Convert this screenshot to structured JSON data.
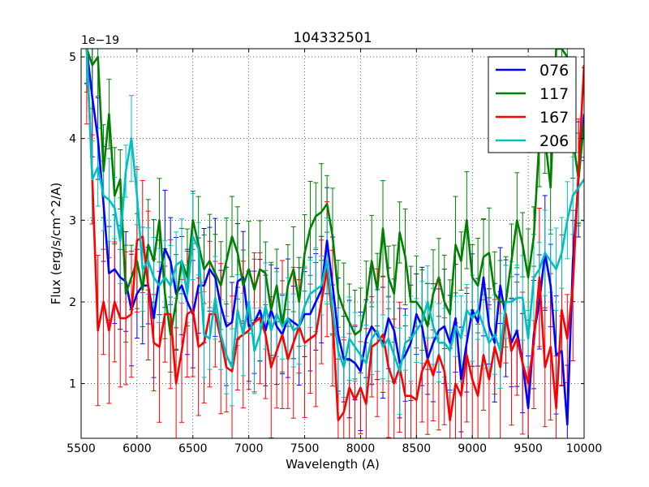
{
  "chart_data": {
    "type": "line",
    "title": "104332501",
    "xlabel": "Wavelength (A)",
    "ylabel": "Flux (erg/s/cm^2/A)",
    "y_offset_label": "1e−19",
    "xlim": [
      5500,
      10000
    ],
    "ylim": [
      0.33,
      5.1
    ],
    "grid": true,
    "legend_position": "top-right",
    "x_ticks": [
      5500,
      6000,
      6500,
      7000,
      7500,
      8000,
      8500,
      9000,
      9500,
      10000
    ],
    "y_ticks": [
      1,
      2,
      3,
      4,
      5
    ],
    "x": [
      5550,
      5600,
      5650,
      5700,
      5750,
      5800,
      5850,
      5900,
      5950,
      6000,
      6050,
      6100,
      6150,
      6200,
      6250,
      6300,
      6350,
      6400,
      6450,
      6500,
      6550,
      6600,
      6650,
      6700,
      6750,
      6800,
      6850,
      6900,
      6950,
      7000,
      7050,
      7100,
      7150,
      7200,
      7250,
      7300,
      7350,
      7400,
      7450,
      7500,
      7550,
      7600,
      7650,
      7700,
      7750,
      7800,
      7850,
      7900,
      7950,
      8000,
      8050,
      8100,
      8150,
      8200,
      8250,
      8300,
      8350,
      8400,
      8450,
      8500,
      8550,
      8600,
      8650,
      8700,
      8750,
      8800,
      8850,
      8900,
      8950,
      9000,
      9050,
      9100,
      9150,
      9200,
      9250,
      9300,
      9350,
      9400,
      9450,
      9500,
      9550,
      9600,
      9650,
      9700,
      9750,
      9800,
      9850,
      9900,
      9950,
      10000
    ],
    "series": [
      {
        "name": "076",
        "color": "#0000ff",
        "values": [
          5.1,
          4.5,
          4.0,
          3.2,
          2.35,
          2.4,
          2.3,
          2.25,
          1.9,
          2.1,
          2.2,
          2.2,
          1.8,
          2.3,
          2.65,
          2.5,
          2.1,
          2.2,
          2.0,
          1.85,
          2.2,
          2.2,
          2.4,
          2.3,
          1.95,
          1.7,
          1.75,
          2.25,
          2.3,
          1.7,
          1.75,
          1.9,
          1.65,
          1.9,
          1.7,
          1.6,
          1.8,
          1.75,
          1.7,
          1.85,
          1.85,
          2.0,
          2.15,
          2.75,
          2.2,
          1.6,
          1.3,
          1.3,
          1.25,
          1.15,
          1.55,
          1.7,
          1.6,
          1.5,
          1.8,
          1.65,
          1.25,
          1.35,
          1.5,
          1.85,
          1.7,
          1.3,
          1.5,
          1.65,
          1.7,
          1.5,
          1.8,
          1.05,
          1.5,
          1.9,
          1.75,
          2.3,
          1.7,
          1.5,
          2.2,
          1.8,
          1.5,
          1.65,
          1.25,
          0.7,
          1.6,
          2.0,
          2.6,
          2.2,
          1.35,
          1.4,
          0.5,
          2.5,
          3.5,
          4.3
        ]
      },
      {
        "name": "117",
        "color": "#008000",
        "values": [
          5.1,
          4.9,
          5.0,
          3.6,
          4.3,
          3.3,
          3.5,
          2.1,
          2.3,
          2.5,
          2.15,
          2.7,
          2.5,
          3.0,
          2.1,
          1.6,
          2.0,
          2.5,
          2.3,
          3.0,
          2.7,
          2.4,
          2.5,
          2.35,
          2.2,
          2.5,
          2.8,
          2.6,
          2.2,
          2.4,
          2.15,
          2.4,
          2.35,
          1.9,
          2.2,
          1.7,
          2.2,
          2.4,
          2.0,
          2.6,
          2.9,
          3.05,
          3.1,
          3.2,
          2.8,
          2.1,
          1.9,
          1.75,
          1.6,
          1.65,
          2.0,
          2.5,
          2.15,
          2.9,
          2.3,
          2.1,
          2.85,
          2.55,
          2.0,
          2.0,
          1.9,
          1.7,
          2.1,
          2.3,
          2.0,
          1.85,
          2.7,
          2.5,
          3.0,
          2.3,
          2.2,
          2.55,
          2.6,
          2.1,
          2.0,
          2.0,
          2.5,
          3.0,
          2.7,
          2.3,
          2.8,
          4.0,
          4.0,
          3.4,
          5.1,
          5.1,
          5.0,
          4.0,
          3.5,
          4.2
        ]
      },
      {
        "name": "167",
        "color": "#ff0000",
        "values": [
          5.1,
          3.5,
          1.65,
          2.0,
          1.65,
          2.0,
          1.8,
          1.8,
          1.85,
          2.75,
          2.8,
          2.2,
          1.5,
          1.45,
          1.85,
          1.85,
          1.0,
          1.4,
          1.85,
          1.9,
          1.45,
          1.5,
          1.85,
          1.85,
          1.55,
          1.2,
          1.15,
          1.55,
          1.6,
          1.65,
          1.75,
          1.8,
          1.6,
          1.2,
          1.4,
          1.6,
          1.3,
          1.5,
          1.7,
          1.5,
          1.55,
          1.6,
          2.0,
          2.4,
          1.8,
          0.55,
          0.65,
          0.95,
          0.8,
          0.95,
          0.75,
          1.45,
          1.5,
          1.6,
          1.2,
          1.0,
          1.2,
          0.85,
          0.85,
          0.8,
          1.15,
          1.3,
          1.1,
          1.35,
          1.15,
          0.55,
          1.0,
          0.85,
          1.35,
          1.05,
          0.85,
          1.35,
          1.05,
          1.45,
          1.2,
          1.85,
          1.4,
          1.55,
          1.25,
          1.0,
          1.5,
          2.3,
          1.2,
          1.45,
          0.7,
          1.9,
          1.55,
          2.2,
          3.6,
          4.9
        ]
      },
      {
        "name": "206",
        "color": "#00bfbf",
        "values": [
          5.1,
          3.5,
          3.65,
          3.3,
          3.25,
          3.15,
          2.75,
          3.6,
          4.0,
          3.3,
          2.4,
          2.5,
          2.3,
          2.2,
          2.3,
          2.2,
          2.45,
          2.5,
          2.1,
          2.8,
          2.65,
          1.6,
          1.55,
          2.05,
          1.6,
          1.35,
          1.2,
          1.9,
          1.6,
          2.0,
          1.4,
          1.6,
          1.95,
          1.65,
          1.85,
          1.7,
          1.8,
          1.65,
          1.7,
          1.95,
          2.1,
          2.15,
          2.2,
          2.5,
          1.9,
          1.4,
          1.2,
          1.55,
          1.45,
          1.35,
          1.25,
          1.55,
          1.65,
          1.45,
          1.55,
          1.35,
          1.15,
          1.5,
          1.55,
          1.65,
          1.75,
          2.0,
          1.7,
          1.5,
          1.5,
          1.4,
          1.7,
          1.55,
          1.9,
          1.8,
          1.9,
          1.7,
          1.5,
          1.6,
          1.4,
          2.0,
          2.0,
          2.05,
          2.05,
          1.55,
          2.3,
          2.4,
          2.6,
          2.5,
          2.4,
          2.6,
          3.0,
          3.3,
          3.4,
          3.5
        ]
      }
    ]
  }
}
